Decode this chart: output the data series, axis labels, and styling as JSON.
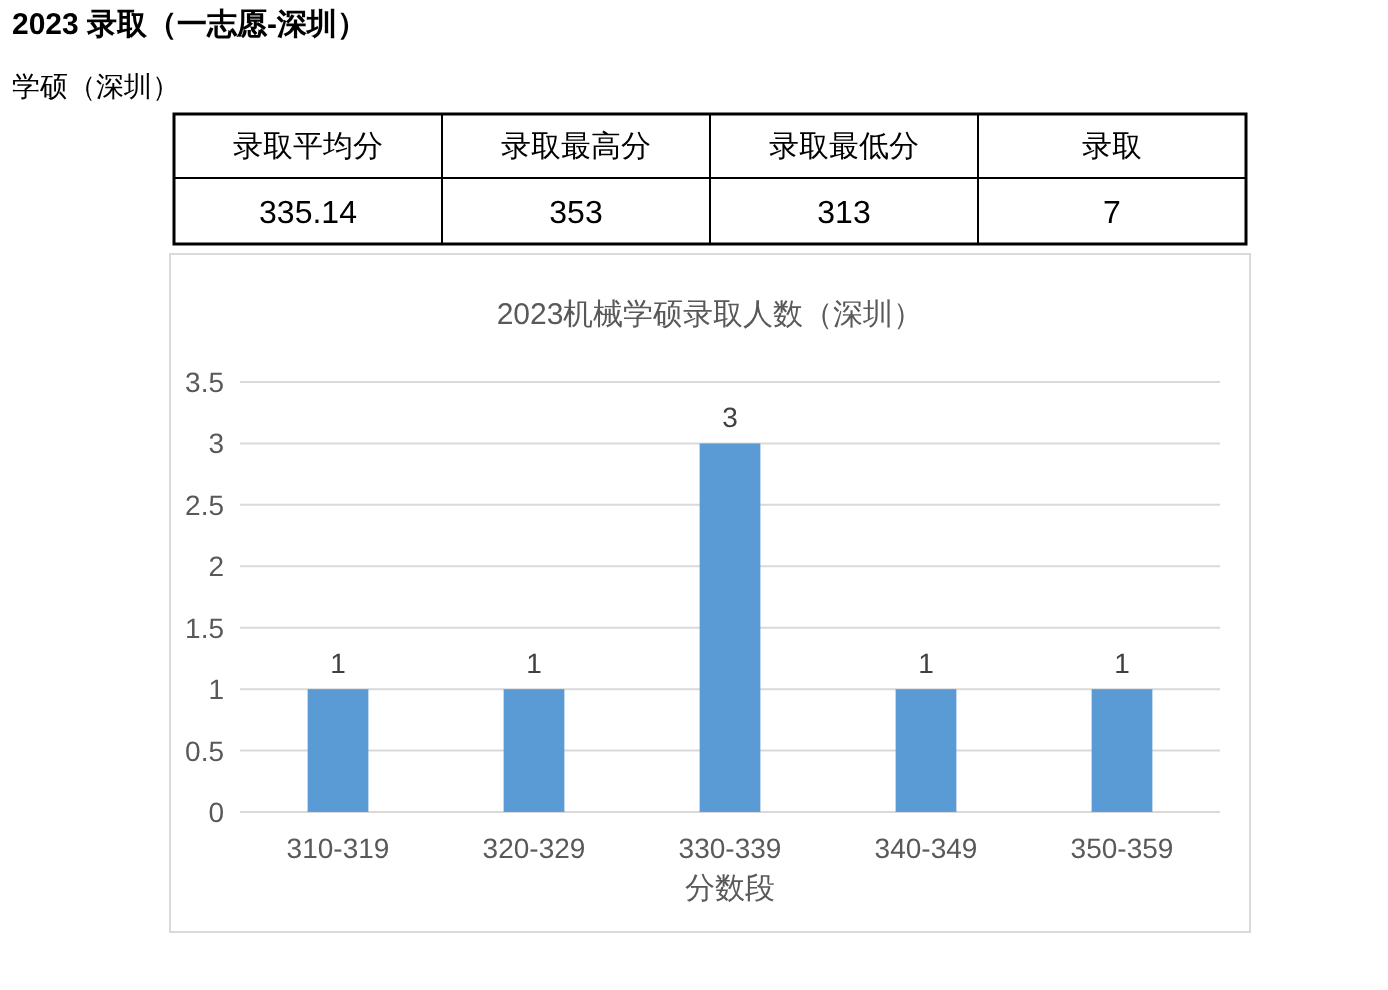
{
  "chart_data": [
    {
      "type": "other",
      "title": "2023 录取（一志愿-深圳）",
      "subtitle": "学硕（深圳）",
      "categories": [
        "录取平均分",
        "录取最高分",
        "录取最低分",
        "录取"
      ],
      "values": [
        335.14,
        353,
        313,
        7
      ],
      "data_labels": true
    },
    {
      "type": "bar",
      "title": "2023机械学硕录取人数（深圳）",
      "xlabel": "分数段",
      "categories": [
        "310-319",
        "320-329",
        "330-339",
        "340-349",
        "350-359"
      ],
      "values": [
        1,
        1,
        3,
        1,
        1
      ],
      "color": "#5b9bd5",
      "ylim": [
        0,
        3.5
      ],
      "yticks": [
        0,
        0.5,
        1,
        1.5,
        2,
        2.5,
        3,
        3.5
      ],
      "grid": "y",
      "data_labels": true
    }
  ]
}
